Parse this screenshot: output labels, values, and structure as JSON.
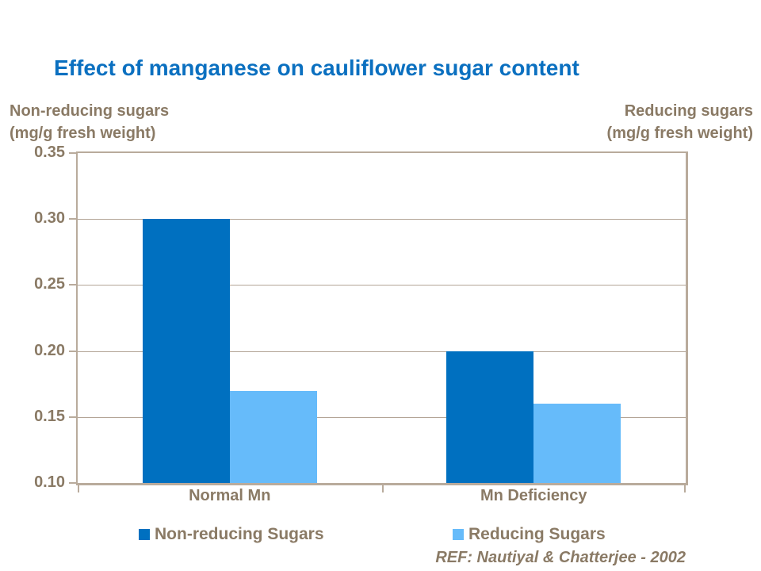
{
  "title": "Effect of manganese on cauliflower sugar content",
  "left_axis_title": {
    "line1": "Non-reducing sugars",
    "line2": "(mg/g fresh weight)"
  },
  "right_axis_title": {
    "line1": "Reducing sugars",
    "line2": "(mg/g fresh weight)"
  },
  "reference": "REF: Nautiyal & Chatterjee - 2002",
  "colors": {
    "title_blue": "#0b70c0",
    "label_brown": "#8a7a65",
    "grid_light": "#b3a496",
    "grid_dark": "#b9ab9c",
    "series_dark_blue": "#0070c0",
    "series_light_blue": "#66bbfa",
    "background": "#ffffff"
  },
  "chart_data": {
    "type": "bar",
    "categories": [
      "Normal Mn",
      "Mn Deficiency"
    ],
    "series": [
      {
        "name": "Non-reducing Sugars",
        "color": "#0070c0",
        "values": [
          0.3,
          0.2
        ]
      },
      {
        "name": "Reducing Sugars",
        "color": "#66bbfa",
        "values": [
          0.17,
          0.16
        ]
      }
    ],
    "title": "Effect of manganese on cauliflower sugar content",
    "xlabel": "",
    "ylabel_left": "Non-reducing sugars (mg/g fresh weight)",
    "ylabel_right": "Reducing sugars (mg/g fresh weight)",
    "ylim": [
      0.1,
      0.35
    ],
    "yticks": [
      0.35,
      0.3,
      0.25,
      0.2,
      0.15,
      0.1
    ],
    "ytick_labels": [
      "0.35",
      "0.30",
      "0.25",
      "0.20",
      "0.15",
      "0.10"
    ],
    "grid": true,
    "legend_position": "bottom",
    "annotation": "REF: Nautiyal & Chatterjee - 2002"
  }
}
